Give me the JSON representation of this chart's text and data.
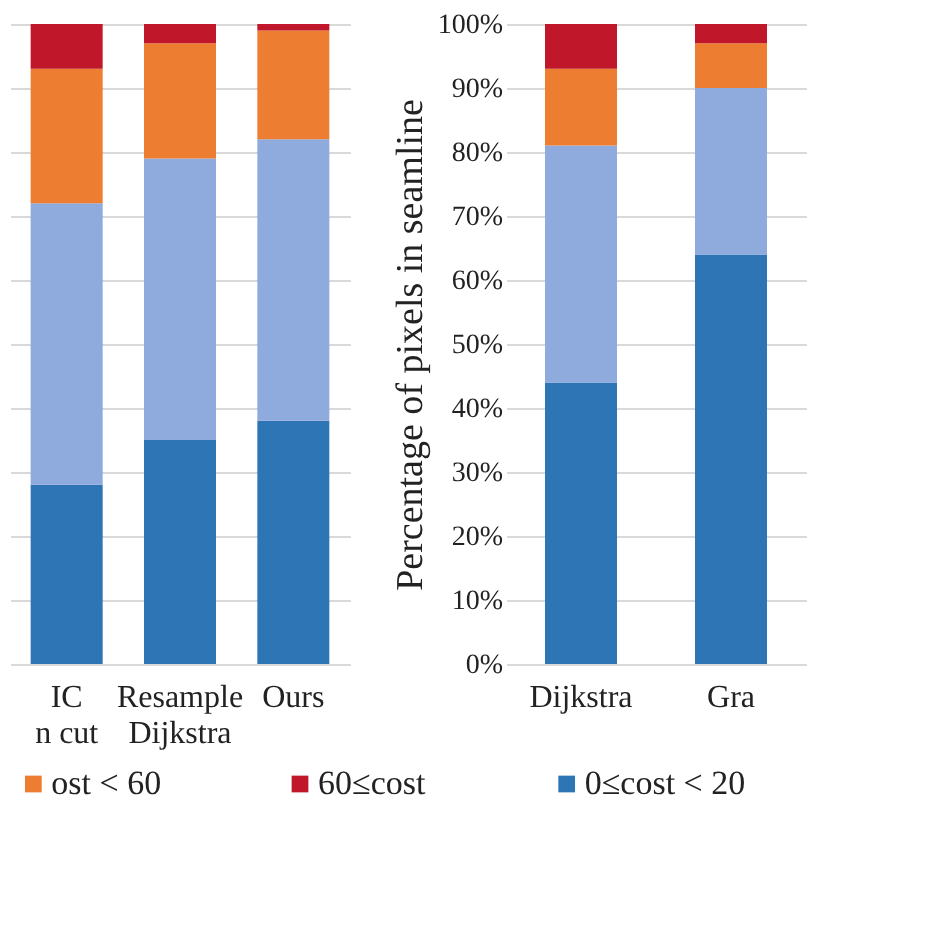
{
  "chart_data": [
    {
      "type": "bar",
      "stacked": true,
      "categories": [
        "IC\nn cut",
        "Resample\nDijkstra",
        "Ours"
      ],
      "series": [
        {
          "name": null,
          "color": "#2e75b6",
          "values": [
            28,
            35,
            38
          ]
        },
        {
          "name": null,
          "color": "#8faadc",
          "values": [
            44,
            44,
            44
          ]
        },
        {
          "name": "ost < 60",
          "color": "#ed7d31",
          "values": [
            21,
            18,
            17
          ]
        },
        {
          "name": "60≤cost",
          "color": "#c0172b",
          "values": [
            7,
            3,
            1
          ]
        }
      ],
      "ylim": [
        0,
        100
      ],
      "yticks": [
        0,
        10,
        20,
        30,
        40,
        50,
        60,
        70,
        80,
        90,
        100
      ],
      "grid": "y",
      "tick_labels": "x",
      "legend": "bottom"
    },
    {
      "type": "bar",
      "stacked": true,
      "categories": [
        "Dijkstra",
        "Gra"
      ],
      "ylabel": "Percentage of pixels in seamline",
      "series": [
        {
          "name": "0≤cost < 20",
          "color": "#2e75b6",
          "values": [
            44,
            64
          ]
        },
        {
          "name": null,
          "color": "#8faadc",
          "values": [
            37,
            26
          ]
        },
        {
          "name": null,
          "color": "#ed7d31",
          "values": [
            12,
            7
          ]
        },
        {
          "name": null,
          "color": "#c0172b",
          "values": [
            7,
            3
          ]
        }
      ],
      "ylim": [
        0,
        100
      ],
      "yticks": [
        {
          "value": 0,
          "label": "0%"
        },
        {
          "value": 10,
          "label": "10%"
        },
        {
          "value": 20,
          "label": "20%"
        },
        {
          "value": 30,
          "label": "30%"
        },
        {
          "value": 40,
          "label": "40%"
        },
        {
          "value": 50,
          "label": "50%"
        },
        {
          "value": 60,
          "label": "60%"
        },
        {
          "value": 70,
          "label": "70%"
        },
        {
          "value": 80,
          "label": "80%"
        },
        {
          "value": 90,
          "label": "90%"
        },
        {
          "value": 100,
          "label": "100%"
        }
      ],
      "grid": "y",
      "legend": "bottom"
    }
  ]
}
